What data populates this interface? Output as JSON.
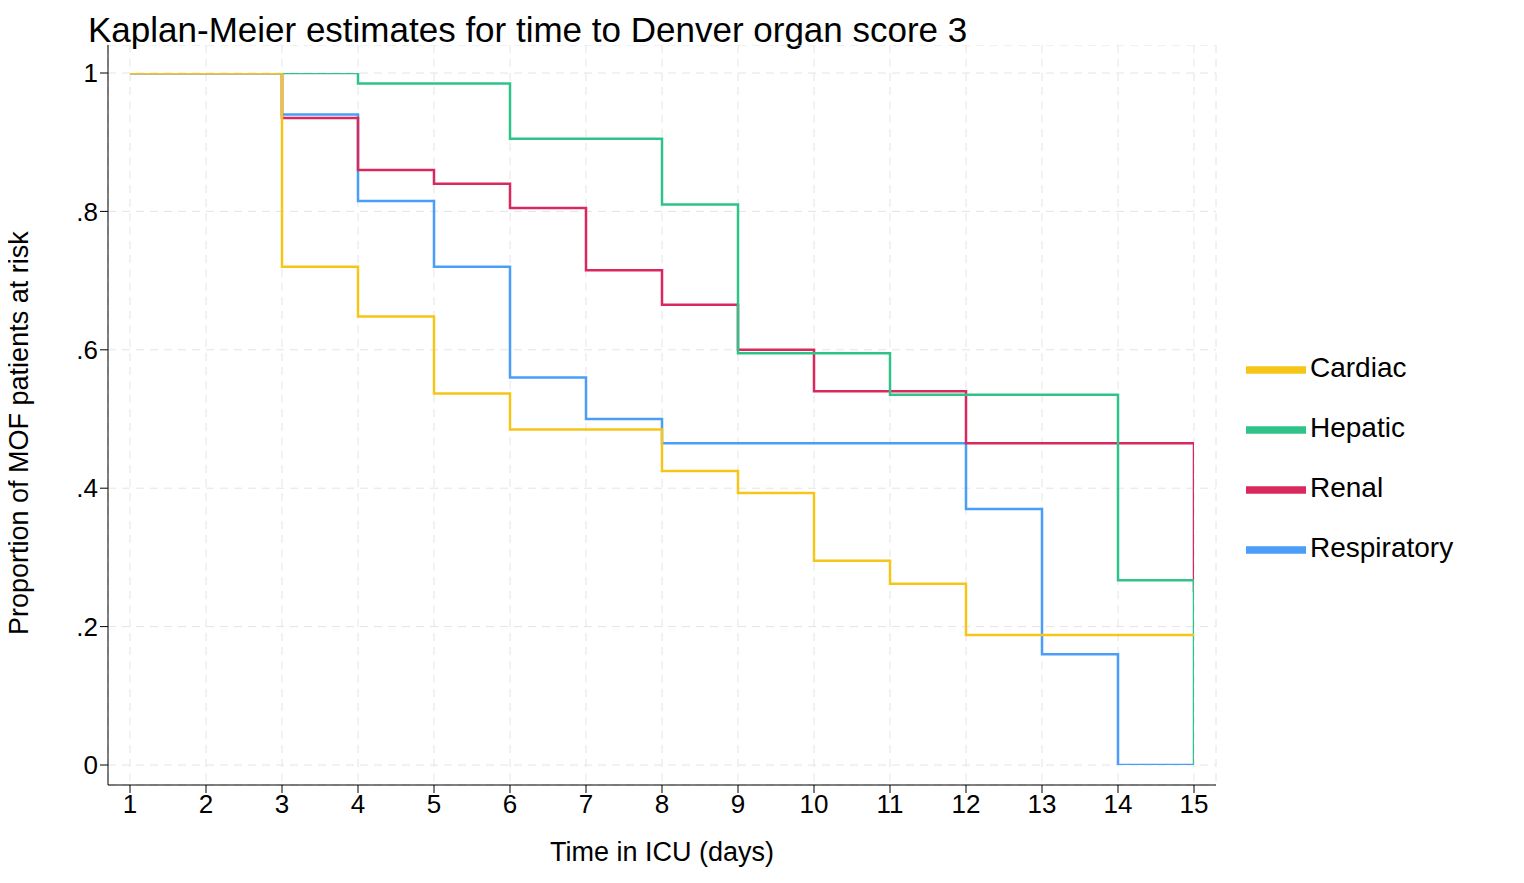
{
  "chart_data": {
    "type": "line",
    "title": "Kaplan-Meier estimates for time to Denver organ score 3",
    "x_label": "Time in ICU (days)",
    "y_label": "Proportion of MOF patients at risk",
    "x": [
      1,
      2,
      3,
      4,
      5,
      6,
      7,
      8,
      9,
      10,
      11,
      12,
      13,
      14,
      15
    ],
    "series": [
      {
        "name": "Respiratory",
        "color": "#4a9df8",
        "line_style": "step",
        "values": [
          1,
          1,
          0.94,
          0.815,
          0.72,
          0.56,
          0.5,
          0.465,
          0.465,
          0.465,
          0.465,
          0.37,
          0.16,
          0,
          0
        ]
      },
      {
        "name": "Renal",
        "color": "#d9285d",
        "line_style": "step",
        "values": [
          1,
          1,
          0.935,
          0.86,
          0.84,
          0.805,
          0.715,
          0.665,
          0.6,
          0.54,
          0.54,
          0.465,
          0.465,
          0.465,
          0.25
        ]
      },
      {
        "name": "Hepatic",
        "color": "#2fc38a",
        "line_style": "step",
        "values": [
          1,
          1,
          1,
          0.985,
          0.985,
          0.905,
          0.905,
          0.81,
          0.595,
          0.595,
          0.535,
          0.535,
          0.535,
          0.267,
          0
        ]
      },
      {
        "name": "Cardiac",
        "color": "#f5c518",
        "line_style": "step",
        "values": [
          1,
          1,
          0.72,
          0.648,
          0.537,
          0.485,
          0.485,
          0.425,
          0.393,
          0.295,
          0.262,
          0.188,
          0.188,
          0.188,
          0.188
        ]
      }
    ],
    "xlim": [
      1,
      15
    ],
    "ylim": [
      0,
      1
    ],
    "xticks": [
      1,
      2,
      3,
      4,
      5,
      6,
      7,
      8,
      9,
      10,
      11,
      12,
      13,
      14,
      15
    ],
    "yticks": [
      0,
      {
        "value": 0.2,
        "label": ".2"
      },
      {
        "value": 0.4,
        "label": ".4"
      },
      {
        "value": 0.6,
        "label": ".6"
      },
      {
        "value": 0.8,
        "label": ".8"
      },
      1
    ],
    "grid": true,
    "legend": "right"
  }
}
